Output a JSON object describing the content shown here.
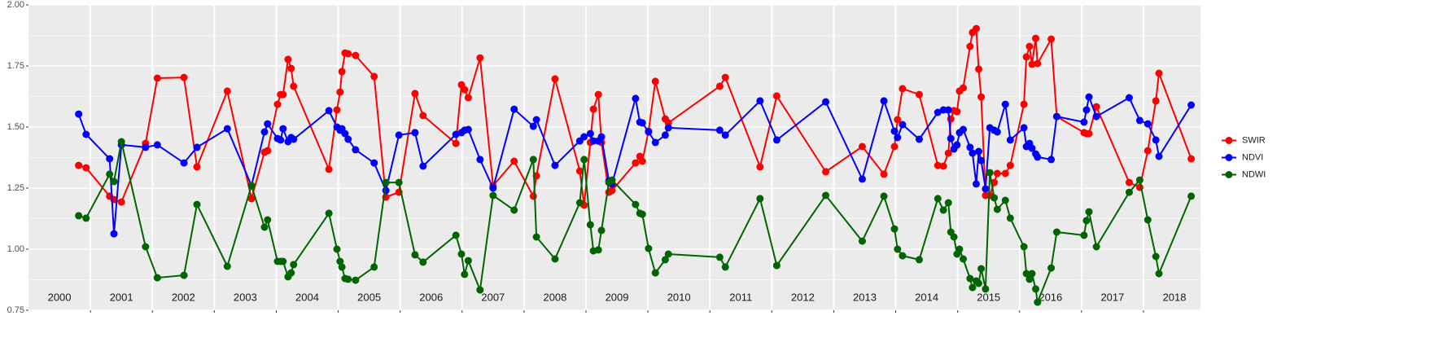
{
  "chart_data": {
    "type": "line",
    "x": [
      2000.81,
      2000.93,
      2001.31,
      2001.38,
      2001.5,
      2001.89,
      2002.08,
      2002.51,
      2002.72,
      2003.21,
      2003.6,
      2003.81,
      2003.86,
      2004.02,
      2004.07,
      2004.11,
      2004.19,
      2004.24,
      2004.28,
      2004.85,
      2004.98,
      2005.03,
      2005.06,
      2005.11,
      2005.16,
      2005.28,
      2005.58,
      2005.77,
      2005.98,
      2006.24,
      2006.37,
      2006.9,
      2006.99,
      2007.04,
      2007.1,
      2007.29,
      2007.5,
      2007.84,
      2008.15,
      2008.2,
      2008.5,
      2008.9,
      2008.97,
      2009.07,
      2009.12,
      2009.2,
      2009.25,
      2009.37,
      2009.42,
      2009.8,
      2009.87,
      2009.91,
      2010.01,
      2010.12,
      2010.28,
      2010.33,
      2011.16,
      2011.25,
      2011.81,
      2012.08,
      2012.87,
      2013.46,
      2013.81,
      2013.98,
      2014.03,
      2014.11,
      2014.38,
      2014.68,
      2014.77,
      2014.85,
      2014.89,
      2014.94,
      2014.99,
      2015.03,
      2015.09,
      2015.2,
      2015.24,
      2015.3,
      2015.34,
      2015.38,
      2015.45,
      2015.52,
      2015.59,
      2015.64,
      2015.77,
      2015.85,
      2016.07,
      2016.11,
      2016.16,
      2016.2,
      2016.26,
      2016.29,
      2016.51,
      2016.6,
      2017.04,
      2017.08,
      2017.12,
      2017.24,
      2017.77,
      2017.94,
      2018.07,
      2018.2,
      2018.25,
      2018.77
    ],
    "series": [
      {
        "name": "SWIR",
        "color": "#ff0000",
        "values": [
          1.343,
          1.333,
          1.217,
          1.203,
          1.193,
          1.433,
          1.7,
          1.703,
          1.337,
          1.647,
          1.207,
          1.397,
          1.403,
          1.593,
          1.633,
          1.633,
          1.777,
          1.74,
          1.667,
          1.327,
          1.57,
          1.643,
          1.727,
          1.803,
          1.8,
          1.793,
          1.707,
          1.213,
          1.233,
          1.637,
          1.547,
          1.433,
          1.673,
          1.653,
          1.62,
          1.783,
          1.26,
          1.36,
          1.217,
          1.3,
          1.697,
          1.32,
          1.18,
          1.437,
          1.573,
          1.633,
          1.437,
          1.233,
          1.24,
          1.353,
          1.38,
          1.36,
          1.483,
          1.687,
          1.533,
          1.517,
          1.667,
          1.703,
          1.337,
          1.627,
          1.317,
          1.42,
          1.307,
          1.42,
          1.53,
          1.657,
          1.633,
          1.343,
          1.34,
          1.393,
          1.533,
          1.567,
          1.563,
          1.647,
          1.66,
          1.83,
          1.887,
          1.903,
          1.737,
          1.623,
          1.22,
          1.22,
          1.273,
          1.31,
          1.31,
          1.343,
          1.593,
          1.787,
          1.83,
          1.757,
          1.863,
          1.76,
          1.86,
          1.543,
          1.477,
          1.473,
          1.473,
          1.583,
          1.273,
          1.253,
          1.403,
          1.607,
          1.72,
          1.37
        ]
      },
      {
        "name": "NDVI",
        "color": "#0000ff",
        "values": [
          1.553,
          1.47,
          1.37,
          1.063,
          1.427,
          1.417,
          1.427,
          1.353,
          1.417,
          1.493,
          1.26,
          1.48,
          1.513,
          1.453,
          1.447,
          1.493,
          1.44,
          1.457,
          1.45,
          1.567,
          1.5,
          1.487,
          1.493,
          1.473,
          1.45,
          1.407,
          1.353,
          1.24,
          1.467,
          1.477,
          1.34,
          1.47,
          1.477,
          1.487,
          1.49,
          1.367,
          1.25,
          1.573,
          1.503,
          1.53,
          1.343,
          1.443,
          1.46,
          1.473,
          1.443,
          1.443,
          1.46,
          1.28,
          1.267,
          1.617,
          1.52,
          1.517,
          1.48,
          1.437,
          1.467,
          1.497,
          1.487,
          1.467,
          1.607,
          1.447,
          1.603,
          1.287,
          1.607,
          1.483,
          1.457,
          1.51,
          1.45,
          1.56,
          1.57,
          1.57,
          1.453,
          1.41,
          1.427,
          1.477,
          1.49,
          1.417,
          1.393,
          1.267,
          1.4,
          1.363,
          1.247,
          1.497,
          1.487,
          1.48,
          1.593,
          1.447,
          1.497,
          1.42,
          1.433,
          1.413,
          1.39,
          1.377,
          1.367,
          1.543,
          1.52,
          1.57,
          1.623,
          1.543,
          1.62,
          1.527,
          1.513,
          1.447,
          1.38,
          1.59
        ]
      },
      {
        "name": "NDWI",
        "color": "#006400",
        "values": [
          1.137,
          1.127,
          1.307,
          1.277,
          1.44,
          1.01,
          0.883,
          0.893,
          1.183,
          0.93,
          1.26,
          1.09,
          1.12,
          0.95,
          0.95,
          0.95,
          0.887,
          0.903,
          0.937,
          1.147,
          1.0,
          0.95,
          0.927,
          0.88,
          0.877,
          0.873,
          0.927,
          1.273,
          1.273,
          0.977,
          0.947,
          1.057,
          0.98,
          0.897,
          0.953,
          0.833,
          1.22,
          1.16,
          1.367,
          1.05,
          0.96,
          1.19,
          1.367,
          1.1,
          0.993,
          0.997,
          1.077,
          1.273,
          1.283,
          1.183,
          1.147,
          1.143,
          1.003,
          0.903,
          0.957,
          0.98,
          0.967,
          0.927,
          1.207,
          0.933,
          1.22,
          1.033,
          1.217,
          1.083,
          1.0,
          0.973,
          0.957,
          1.207,
          1.16,
          1.19,
          1.07,
          1.05,
          0.98,
          1.0,
          0.96,
          0.88,
          0.843,
          0.87,
          0.86,
          0.92,
          0.837,
          1.313,
          1.21,
          1.163,
          1.2,
          1.127,
          1.01,
          0.9,
          0.877,
          0.9,
          0.837,
          0.783,
          0.923,
          1.07,
          1.057,
          1.117,
          1.153,
          1.01,
          1.233,
          1.283,
          1.12,
          0.97,
          0.9,
          1.217
        ]
      }
    ],
    "xlim": [
      2000,
      2018.92
    ],
    "x_breaks": [
      2001,
      2002,
      2003,
      2004,
      2005,
      2006,
      2007,
      2008,
      2009,
      2010,
      2011,
      2012,
      2013,
      2014,
      2015,
      2016,
      2017,
      2018
    ],
    "year_labels": [
      2000,
      2001,
      2002,
      2003,
      2004,
      2005,
      2006,
      2007,
      2008,
      2009,
      2010,
      2011,
      2012,
      2013,
      2014,
      2015,
      2016,
      2017,
      2018
    ],
    "ylim": [
      0.75,
      2.0
    ],
    "yticks": [
      {
        "value": 0.75,
        "label": "0.75"
      },
      {
        "value": 1.0,
        "label": "1.00"
      },
      {
        "value": 1.25,
        "label": "1.25"
      },
      {
        "value": 1.5,
        "label": "1.50"
      },
      {
        "value": 1.75,
        "label": "1.75"
      },
      {
        "value": 2.0,
        "label": "2.00"
      }
    ],
    "grid": true,
    "legend": "right"
  }
}
